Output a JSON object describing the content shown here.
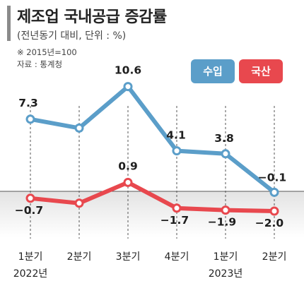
{
  "header": {
    "title": "제조업 국내공급 증감률",
    "subtitle": "(전년동기 대비, 단위 : %)",
    "note_base": "※ 2015년=100",
    "note_source": "자료 : 통계청"
  },
  "colors": {
    "import": "#5b9ec9",
    "domestic": "#e8484e",
    "negative_zone": "#e3e3e3"
  },
  "chart_data": {
    "type": "line",
    "title": "제조업 국내공급 증감률",
    "subtitle": "(전년동기 대비, 단위 : %)",
    "categories": [
      "1분기",
      "2분기",
      "3분기",
      "4분기",
      "1분기",
      "2분기"
    ],
    "year_labels": [
      "2022년",
      "",
      "",
      "",
      "2023년",
      ""
    ],
    "series": [
      {
        "name": "수입",
        "values": [
          7.3,
          6.4,
          10.6,
          4.1,
          3.8,
          -0.1
        ],
        "labels": [
          "7.3",
          "",
          "10.6",
          "4.1",
          "3.8",
          "−0.1"
        ]
      },
      {
        "name": "국산",
        "values": [
          -0.7,
          -1.2,
          0.9,
          -1.7,
          -1.9,
          -2.0
        ],
        "labels": [
          "−0.7",
          "",
          "0.9",
          "−1.7",
          "−1.9",
          "−2.0"
        ]
      }
    ],
    "ylim": [
      -3.5,
      12
    ],
    "grid": false,
    "legend": "top-right"
  }
}
